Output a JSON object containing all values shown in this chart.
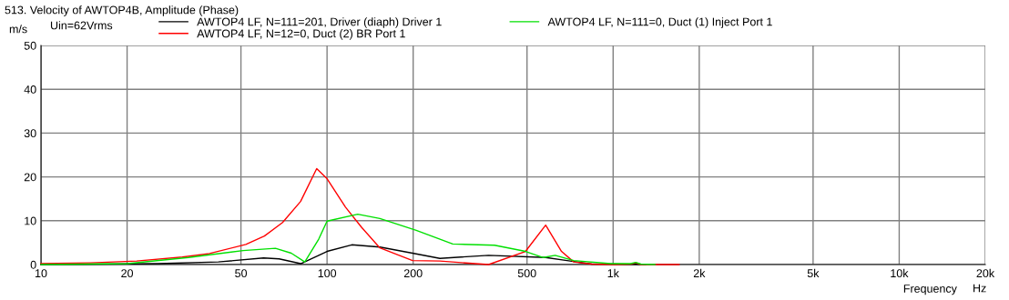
{
  "chart_data": {
    "type": "line",
    "title": "513. Velocity of AWTOP4B, Amplitude (Phase)",
    "xlabel": "Frequency",
    "ylabel": "m/s",
    "annotations": [
      "Uin=62Vrms",
      "Hz"
    ],
    "log": "x",
    "grid": true,
    "legend": "top",
    "marker": "none",
    "line_style": "solid",
    "xlim": [
      10,
      20000
    ],
    "ylim": [
      0,
      50
    ],
    "xticks": [
      10,
      20,
      50,
      100,
      200,
      500,
      {
        "value": 1000,
        "label": "1k"
      },
      {
        "value": 2000,
        "label": "2k"
      },
      {
        "value": 5000,
        "label": "5k"
      },
      {
        "value": 10000,
        "label": "10k"
      },
      {
        "value": 20000,
        "label": "20k"
      }
    ],
    "yticks": [
      0,
      10,
      20,
      30,
      40,
      50
    ],
    "series": [
      {
        "name": "AWTOP4 LF, N=111=201, Driver (diaph) Driver 1",
        "color": "#000000",
        "x": [
          10,
          25.6,
          41.7,
          60,
          68,
          80.9,
          100,
          122,
          153,
          199,
          248,
          367,
          581,
          690,
          843,
          1000,
          1300
        ],
        "values": [
          0,
          0.2,
          0.6,
          1.5,
          1.3,
          0.2,
          3.0,
          4.5,
          4.0,
          2.6,
          1.4,
          2.1,
          1.6,
          0.9,
          0.1,
          0.1,
          0
        ]
      },
      {
        "name": "AWTOP4 LF, N=12=0, Duct (2) BR Port 1",
        "color": "#ff0000",
        "x": [
          10,
          14.9,
          21.6,
          31.2,
          38.8,
          52,
          60.4,
          69.9,
          80.8,
          92,
          100,
          116,
          132,
          153,
          199,
          248,
          367,
          494,
          581,
          660,
          728,
          843,
          1000,
          1150,
          1200,
          1250,
          1700
        ],
        "values": [
          0.2,
          0.4,
          0.8,
          1.7,
          2.5,
          4.6,
          6.5,
          9.6,
          14.4,
          21.9,
          19.6,
          13.1,
          8.5,
          3.8,
          0.9,
          0.8,
          0,
          3.0,
          9.0,
          3.0,
          0.6,
          0.1,
          0,
          0.1,
          0.4,
          0,
          0
        ]
      },
      {
        "name": "AWTOP4 LF, N=111=0, Duct (1) Inject Port 1",
        "color": "#00e000",
        "x": [
          10,
          20,
          32.8,
          50.9,
          66,
          75,
          83.6,
          93.5,
          100,
          128,
          153,
          205,
          275,
          385,
          494,
          570,
          627,
          728,
          981,
          1150,
          1200,
          1250,
          1400
        ],
        "values": [
          0,
          0.2,
          1.6,
          3.2,
          3.7,
          2.6,
          0.6,
          5.8,
          9.9,
          11.5,
          10.5,
          7.8,
          4.7,
          4.4,
          3.0,
          1.6,
          2.1,
          0.9,
          0.2,
          0.2,
          0.5,
          0.1,
          0
        ]
      }
    ]
  }
}
